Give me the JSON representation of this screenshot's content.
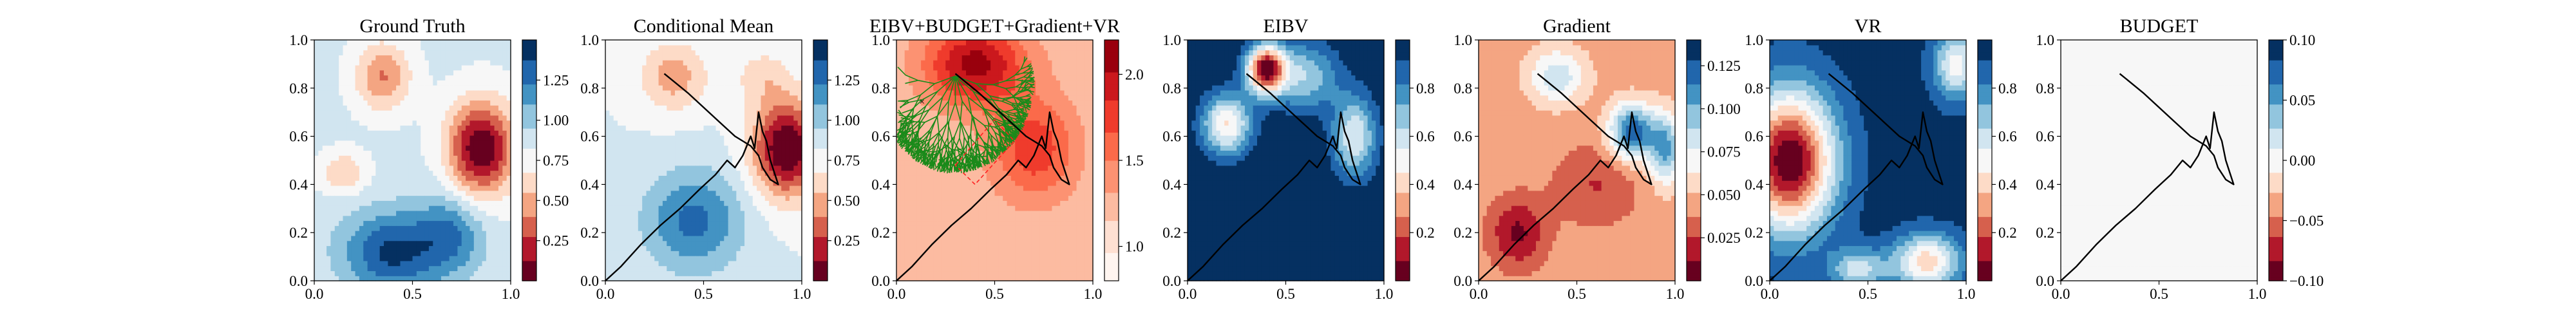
{
  "figure": {
    "panel_count": 7
  },
  "chart_data": [
    {
      "type": "heatmap",
      "title": "Ground Truth",
      "xlim": [
        0,
        1
      ],
      "ylim": [
        0,
        1
      ],
      "xticks": [
        "0.0",
        "0.5",
        "1.0"
      ],
      "yticks": [
        "0.0",
        "0.2",
        "0.4",
        "0.6",
        "0.8",
        "1.0"
      ],
      "colormap": "RdBu",
      "clim": [
        0.0,
        1.5
      ],
      "colorbar_ticks": [
        "0.25",
        "0.50",
        "0.75",
        "1.00",
        "1.25"
      ],
      "colorbar_tick_values": [
        0.25,
        0.5,
        0.75,
        1.0,
        1.25
      ],
      "features": [
        {
          "x": 0.85,
          "y": 0.55,
          "sx": 0.12,
          "sy": 0.14,
          "a": -0.85
        },
        {
          "x": 0.35,
          "y": 0.85,
          "sx": 0.1,
          "sy": 0.1,
          "a": -0.45
        },
        {
          "x": 0.15,
          "y": 0.45,
          "sx": 0.08,
          "sy": 0.06,
          "a": -0.3
        },
        {
          "x": 0.4,
          "y": 0.12,
          "sx": 0.18,
          "sy": 0.12,
          "a": 0.55
        },
        {
          "x": 0.7,
          "y": 0.2,
          "sx": 0.12,
          "sy": 0.12,
          "a": 0.35
        }
      ],
      "base": 0.85,
      "path": []
    },
    {
      "type": "heatmap",
      "title": "Conditional Mean",
      "xlim": [
        0,
        1
      ],
      "ylim": [
        0,
        1
      ],
      "xticks": [
        "0.0",
        "0.5",
        "1.0"
      ],
      "yticks": [
        "0.0",
        "0.2",
        "0.4",
        "0.6",
        "0.8",
        "1.0"
      ],
      "colormap": "RdBu",
      "clim": [
        0.0,
        1.5
      ],
      "colorbar_ticks": [
        "0.25",
        "0.50",
        "0.75",
        "1.00",
        "1.25"
      ],
      "colorbar_tick_values": [
        0.25,
        0.5,
        0.75,
        1.0,
        1.25
      ],
      "features": [
        {
          "x": 0.92,
          "y": 0.55,
          "sx": 0.12,
          "sy": 0.14,
          "a": -0.85
        },
        {
          "x": 0.35,
          "y": 0.85,
          "sx": 0.12,
          "sy": 0.1,
          "a": -0.35
        },
        {
          "x": 0.45,
          "y": 0.25,
          "sx": 0.18,
          "sy": 0.15,
          "a": 0.45
        },
        {
          "x": 0.8,
          "y": 0.85,
          "sx": 0.1,
          "sy": 0.08,
          "a": -0.2
        }
      ],
      "base": 0.82,
      "path": "shared"
    },
    {
      "type": "heatmap",
      "title": "EIBV+BUDGET+Gradient+VR",
      "xlim": [
        0,
        1
      ],
      "ylim": [
        0,
        1
      ],
      "xticks": [
        "0.0",
        "0.5",
        "1.0"
      ],
      "yticks": [
        "0.0",
        "0.2",
        "0.4",
        "0.6",
        "0.8",
        "1.0"
      ],
      "colormap": "Reds",
      "clim": [
        0.8,
        2.2
      ],
      "colorbar_ticks": [
        "1.0",
        "1.5",
        "2.0"
      ],
      "colorbar_tick_values": [
        1.0,
        1.5,
        2.0
      ],
      "features": [
        {
          "x": 0.4,
          "y": 0.9,
          "sx": 0.18,
          "sy": 0.12,
          "a": 0.9
        },
        {
          "x": 0.7,
          "y": 0.55,
          "sx": 0.15,
          "sy": 0.15,
          "a": 0.6
        }
      ],
      "base": 1.2,
      "path": "shared",
      "overlay": "tree"
    },
    {
      "type": "heatmap",
      "title": "EIBV",
      "xlim": [
        0,
        1
      ],
      "ylim": [
        0,
        1
      ],
      "xticks": [
        "0.0",
        "0.5",
        "1.0"
      ],
      "yticks": [
        "0.0",
        "0.2",
        "0.4",
        "0.6",
        "0.8",
        "1.0"
      ],
      "colormap": "RdBu",
      "clim": [
        0.0,
        1.0
      ],
      "colorbar_ticks": [
        "0.2",
        "0.4",
        "0.6",
        "0.8"
      ],
      "colorbar_tick_values": [
        0.2,
        0.4,
        0.6,
        0.8
      ],
      "features": [
        {
          "x": 0.4,
          "y": 0.88,
          "sx": 0.07,
          "sy": 0.07,
          "a": -0.95
        },
        {
          "x": 0.2,
          "y": 0.65,
          "sx": 0.09,
          "sy": 0.09,
          "a": -0.55
        },
        {
          "x": 0.85,
          "y": 0.6,
          "sx": 0.08,
          "sy": 0.12,
          "a": -0.45
        },
        {
          "x": 0.6,
          "y": 0.85,
          "sx": 0.12,
          "sy": 0.1,
          "a": -0.35
        }
      ],
      "base": 1.0,
      "path": "shared"
    },
    {
      "type": "heatmap",
      "title": "Gradient",
      "xlim": [
        0,
        1
      ],
      "ylim": [
        0,
        1
      ],
      "xticks": [
        "0.0",
        "0.5",
        "1.0"
      ],
      "yticks": [
        "0.0",
        "0.2",
        "0.4",
        "0.6",
        "0.8",
        "1.0"
      ],
      "colormap": "RdBu",
      "clim": [
        0.0,
        0.14
      ],
      "colorbar_ticks": [
        "0.025",
        "0.050",
        "0.075",
        "0.100",
        "0.125"
      ],
      "colorbar_tick_values": [
        0.025,
        0.05,
        0.075,
        0.1,
        0.125
      ],
      "features": [
        {
          "x": 0.78,
          "y": 0.62,
          "sx": 0.08,
          "sy": 0.08,
          "a": 0.08
        },
        {
          "x": 0.95,
          "y": 0.55,
          "sx": 0.06,
          "sy": 0.1,
          "a": 0.06
        },
        {
          "x": 0.4,
          "y": 0.85,
          "sx": 0.1,
          "sy": 0.08,
          "a": 0.04
        },
        {
          "x": 0.2,
          "y": 0.2,
          "sx": 0.1,
          "sy": 0.1,
          "a": -0.035
        },
        {
          "x": 0.6,
          "y": 0.4,
          "sx": 0.15,
          "sy": 0.12,
          "a": -0.02
        }
      ],
      "base": 0.045,
      "path": "shared"
    },
    {
      "type": "heatmap",
      "title": "VR",
      "xlim": [
        0,
        1
      ],
      "ylim": [
        0,
        1
      ],
      "xticks": [
        "0.0",
        "0.5",
        "1.0"
      ],
      "yticks": [
        "0.0",
        "0.2",
        "0.4",
        "0.6",
        "0.8",
        "1.0"
      ],
      "colormap": "RdBu",
      "clim": [
        0.0,
        1.0
      ],
      "colorbar_ticks": [
        "0.2",
        "0.4",
        "0.6",
        "0.8"
      ],
      "colorbar_tick_values": [
        0.2,
        0.4,
        0.6,
        0.8
      ],
      "features": [
        {
          "x": 0.1,
          "y": 0.5,
          "sx": 0.16,
          "sy": 0.2,
          "a": -0.95
        },
        {
          "x": 0.8,
          "y": 0.08,
          "sx": 0.12,
          "sy": 0.08,
          "a": -0.55
        },
        {
          "x": 0.95,
          "y": 0.9,
          "sx": 0.08,
          "sy": 0.1,
          "a": -0.45
        },
        {
          "x": 0.45,
          "y": 0.05,
          "sx": 0.1,
          "sy": 0.06,
          "a": -0.35
        }
      ],
      "base": 0.95,
      "path": "shared"
    },
    {
      "type": "heatmap",
      "title": "BUDGET",
      "xlim": [
        0,
        1
      ],
      "ylim": [
        0,
        1
      ],
      "xticks": [
        "0.0",
        "0.5",
        "1.0"
      ],
      "yticks": [
        "0.0",
        "0.2",
        "0.4",
        "0.6",
        "0.8",
        "1.0"
      ],
      "colormap": "RdBu",
      "clim": [
        -0.1,
        0.1
      ],
      "colorbar_ticks": [
        "−0.10",
        "−0.05",
        "0.00",
        "0.05",
        "0.10"
      ],
      "colorbar_tick_values": [
        -0.1,
        -0.05,
        0.0,
        0.05,
        0.1
      ],
      "features": [],
      "base": 0.0,
      "path": "shared"
    }
  ],
  "shared_path": {
    "color": "#000000",
    "points": [
      [
        0.0,
        0.0
      ],
      [
        0.08,
        0.06
      ],
      [
        0.18,
        0.15
      ],
      [
        0.28,
        0.23
      ],
      [
        0.38,
        0.3
      ],
      [
        0.48,
        0.38
      ],
      [
        0.56,
        0.44
      ],
      [
        0.62,
        0.5
      ],
      [
        0.66,
        0.47
      ],
      [
        0.7,
        0.52
      ],
      [
        0.74,
        0.6
      ],
      [
        0.76,
        0.55
      ],
      [
        0.78,
        0.7
      ],
      [
        0.8,
        0.62
      ],
      [
        0.82,
        0.58
      ],
      [
        0.84,
        0.5
      ],
      [
        0.86,
        0.45
      ],
      [
        0.88,
        0.4
      ],
      [
        0.84,
        0.42
      ],
      [
        0.8,
        0.47
      ],
      [
        0.78,
        0.52
      ],
      [
        0.74,
        0.56
      ],
      [
        0.66,
        0.6
      ],
      [
        0.58,
        0.66
      ],
      [
        0.5,
        0.72
      ],
      [
        0.42,
        0.78
      ],
      [
        0.36,
        0.82
      ],
      [
        0.3,
        0.86
      ]
    ]
  }
}
